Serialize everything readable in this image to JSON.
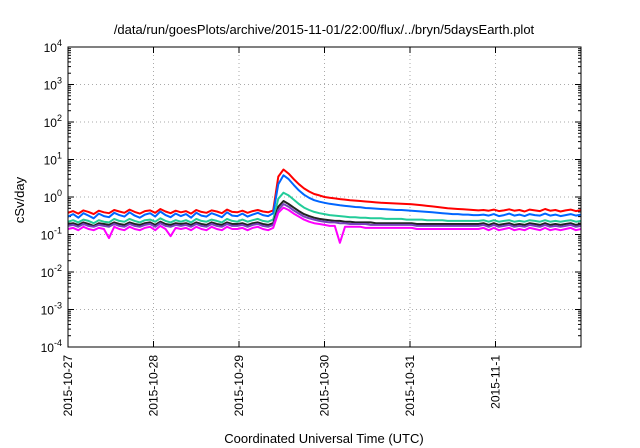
{
  "chart_data": {
    "type": "line",
    "title": "/data/run/goesPlots/archive/2015-11-01/22:00/flux/../bryn/5daysEarth.plot",
    "xlabel": "Coordinated Universal Time (UTC)",
    "ylabel": "cSv/day",
    "x_ticks": [
      "2015-10-27",
      "2015-10-28",
      "2015-10-29",
      "2015-10-30",
      "2015-10-31",
      "2015-11-1"
    ],
    "x_range_days": [
      0,
      6
    ],
    "y_scale": "log",
    "ylim": [
      0.0001,
      10000
    ],
    "y_ticks": [
      {
        "base": "10",
        "exp": "4"
      },
      {
        "base": "10",
        "exp": "3"
      },
      {
        "base": "10",
        "exp": "2"
      },
      {
        "base": "10",
        "exp": "1"
      },
      {
        "base": "10",
        "exp": "0"
      },
      {
        "base": "10",
        "exp": "-1"
      },
      {
        "base": "10",
        "exp": "-2"
      },
      {
        "base": "10",
        "exp": "-3"
      },
      {
        "base": "10",
        "exp": "-4"
      }
    ],
    "grid": true,
    "series": [
      {
        "color": "#ff0000",
        "values": [
          0.38,
          0.42,
          0.36,
          0.44,
          0.4,
          0.35,
          0.43,
          0.39,
          0.37,
          0.45,
          0.41,
          0.38,
          0.46,
          0.4,
          0.36,
          0.42,
          0.44,
          0.38,
          0.48,
          0.41,
          0.37,
          0.43,
          0.39,
          0.42,
          0.36,
          0.45,
          0.4,
          0.38,
          0.44,
          0.41,
          0.37,
          0.46,
          0.4,
          0.39,
          0.43,
          0.38,
          0.42,
          0.45,
          0.41,
          0.39,
          0.44,
          3.5,
          5.4,
          4.2,
          3.0,
          2.2,
          1.7,
          1.4,
          1.2,
          1.1,
          1.0,
          0.95,
          0.92,
          0.88,
          0.85,
          0.82,
          0.8,
          0.78,
          0.76,
          0.74,
          0.72,
          0.7,
          0.69,
          0.68,
          0.67,
          0.66,
          0.65,
          0.64,
          0.62,
          0.6,
          0.58,
          0.56,
          0.54,
          0.52,
          0.5,
          0.49,
          0.48,
          0.47,
          0.46,
          0.45,
          0.44,
          0.45,
          0.43,
          0.46,
          0.42,
          0.44,
          0.47,
          0.43,
          0.45,
          0.41,
          0.46,
          0.44,
          0.42,
          0.48,
          0.43,
          0.45,
          0.41,
          0.44,
          0.46,
          0.42,
          0.45
        ]
      },
      {
        "color": "#0066ff",
        "values": [
          0.3,
          0.35,
          0.28,
          0.37,
          0.32,
          0.27,
          0.36,
          0.31,
          0.29,
          0.38,
          0.33,
          0.3,
          0.39,
          0.32,
          0.28,
          0.34,
          0.37,
          0.3,
          0.41,
          0.33,
          0.29,
          0.36,
          0.31,
          0.35,
          0.28,
          0.38,
          0.32,
          0.3,
          0.37,
          0.33,
          0.29,
          0.39,
          0.32,
          0.31,
          0.36,
          0.3,
          0.34,
          0.38,
          0.33,
          0.31,
          0.37,
          2.2,
          3.8,
          3.0,
          2.1,
          1.5,
          1.15,
          0.95,
          0.82,
          0.75,
          0.7,
          0.66,
          0.63,
          0.6,
          0.58,
          0.56,
          0.54,
          0.53,
          0.51,
          0.5,
          0.49,
          0.48,
          0.47,
          0.46,
          0.45,
          0.45,
          0.44,
          0.43,
          0.42,
          0.41,
          0.4,
          0.39,
          0.38,
          0.37,
          0.36,
          0.35,
          0.35,
          0.34,
          0.34,
          0.33,
          0.33,
          0.34,
          0.32,
          0.35,
          0.31,
          0.33,
          0.36,
          0.32,
          0.34,
          0.31,
          0.35,
          0.33,
          0.32,
          0.36,
          0.32,
          0.34,
          0.31,
          0.33,
          0.35,
          0.32,
          0.34
        ]
      },
      {
        "color": "#22cc99",
        "values": [
          0.22,
          0.24,
          0.21,
          0.25,
          0.23,
          0.2,
          0.24,
          0.22,
          0.21,
          0.26,
          0.23,
          0.22,
          0.26,
          0.23,
          0.21,
          0.24,
          0.25,
          0.22,
          0.27,
          0.23,
          0.21,
          0.24,
          0.22,
          0.24,
          0.21,
          0.26,
          0.23,
          0.22,
          0.25,
          0.23,
          0.21,
          0.26,
          0.23,
          0.22,
          0.25,
          0.22,
          0.24,
          0.26,
          0.23,
          0.22,
          0.25,
          0.9,
          1.3,
          1.1,
          0.85,
          0.65,
          0.52,
          0.45,
          0.4,
          0.37,
          0.35,
          0.33,
          0.32,
          0.31,
          0.3,
          0.29,
          0.29,
          0.28,
          0.28,
          0.27,
          0.27,
          0.27,
          0.26,
          0.26,
          0.26,
          0.26,
          0.25,
          0.25,
          0.25,
          0.25,
          0.24,
          0.24,
          0.24,
          0.24,
          0.23,
          0.23,
          0.23,
          0.23,
          0.23,
          0.23,
          0.23,
          0.24,
          0.22,
          0.24,
          0.22,
          0.23,
          0.24,
          0.22,
          0.23,
          0.22,
          0.24,
          0.23,
          0.22,
          0.24,
          0.22,
          0.23,
          0.22,
          0.23,
          0.24,
          0.22,
          0.23
        ]
      },
      {
        "color": "#222222",
        "values": [
          0.19,
          0.2,
          0.18,
          0.21,
          0.19,
          0.17,
          0.2,
          0.19,
          0.18,
          0.21,
          0.19,
          0.18,
          0.21,
          0.19,
          0.18,
          0.2,
          0.21,
          0.18,
          0.22,
          0.19,
          0.18,
          0.2,
          0.19,
          0.2,
          0.18,
          0.21,
          0.19,
          0.18,
          0.21,
          0.19,
          0.18,
          0.21,
          0.19,
          0.19,
          0.2,
          0.18,
          0.2,
          0.21,
          0.19,
          0.18,
          0.2,
          0.55,
          0.78,
          0.65,
          0.52,
          0.42,
          0.35,
          0.31,
          0.28,
          0.26,
          0.25,
          0.24,
          0.23,
          0.23,
          0.22,
          0.22,
          0.21,
          0.21,
          0.21,
          0.21,
          0.2,
          0.2,
          0.2,
          0.2,
          0.2,
          0.2,
          0.2,
          0.2,
          0.19,
          0.19,
          0.19,
          0.19,
          0.19,
          0.19,
          0.19,
          0.19,
          0.19,
          0.19,
          0.19,
          0.19,
          0.19,
          0.2,
          0.18,
          0.2,
          0.18,
          0.19,
          0.2,
          0.18,
          0.19,
          0.18,
          0.2,
          0.19,
          0.18,
          0.2,
          0.18,
          0.19,
          0.18,
          0.19,
          0.2,
          0.18,
          0.19
        ]
      },
      {
        "color": "#7744bb",
        "values": [
          0.17,
          0.18,
          0.16,
          0.19,
          0.17,
          0.16,
          0.18,
          0.17,
          0.16,
          0.19,
          0.17,
          0.16,
          0.19,
          0.17,
          0.16,
          0.18,
          0.19,
          0.16,
          0.2,
          0.17,
          0.16,
          0.18,
          0.17,
          0.18,
          0.16,
          0.19,
          0.17,
          0.16,
          0.19,
          0.17,
          0.16,
          0.19,
          0.17,
          0.17,
          0.18,
          0.16,
          0.18,
          0.19,
          0.17,
          0.16,
          0.18,
          0.45,
          0.65,
          0.55,
          0.44,
          0.36,
          0.3,
          0.27,
          0.25,
          0.23,
          0.22,
          0.21,
          0.21,
          0.2,
          0.2,
          0.19,
          0.19,
          0.19,
          0.19,
          0.18,
          0.18,
          0.18,
          0.18,
          0.18,
          0.18,
          0.18,
          0.18,
          0.18,
          0.17,
          0.17,
          0.17,
          0.17,
          0.17,
          0.17,
          0.17,
          0.17,
          0.17,
          0.17,
          0.17,
          0.17,
          0.17,
          0.18,
          0.16,
          0.18,
          0.16,
          0.17,
          0.18,
          0.16,
          0.17,
          0.16,
          0.18,
          0.17,
          0.16,
          0.18,
          0.16,
          0.17,
          0.16,
          0.17,
          0.18,
          0.16,
          0.17
        ]
      },
      {
        "color": "#ff00ff",
        "values": [
          0.14,
          0.15,
          0.13,
          0.16,
          0.14,
          0.13,
          0.15,
          0.14,
          0.08,
          0.16,
          0.14,
          0.13,
          0.16,
          0.14,
          0.13,
          0.15,
          0.16,
          0.13,
          0.17,
          0.14,
          0.09,
          0.15,
          0.14,
          0.15,
          0.13,
          0.16,
          0.14,
          0.13,
          0.16,
          0.14,
          0.13,
          0.16,
          0.14,
          0.14,
          0.15,
          0.13,
          0.15,
          0.16,
          0.14,
          0.13,
          0.15,
          0.38,
          0.52,
          0.45,
          0.36,
          0.3,
          0.25,
          0.22,
          0.2,
          0.19,
          0.18,
          0.17,
          0.17,
          0.06,
          0.16,
          0.16,
          0.16,
          0.16,
          0.15,
          0.15,
          0.15,
          0.15,
          0.15,
          0.15,
          0.15,
          0.15,
          0.15,
          0.15,
          0.14,
          0.14,
          0.14,
          0.14,
          0.14,
          0.14,
          0.14,
          0.14,
          0.14,
          0.14,
          0.14,
          0.14,
          0.14,
          0.15,
          0.13,
          0.15,
          0.13,
          0.14,
          0.15,
          0.13,
          0.14,
          0.13,
          0.15,
          0.14,
          0.13,
          0.15,
          0.13,
          0.14,
          0.13,
          0.14,
          0.15,
          0.13,
          0.14
        ]
      }
    ]
  }
}
